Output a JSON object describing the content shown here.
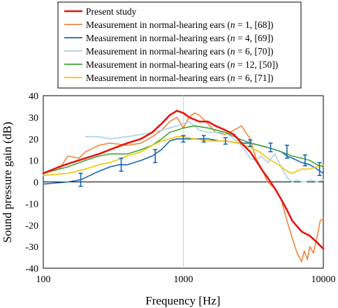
{
  "chart_data": {
    "type": "line",
    "xscale": "log",
    "xlim": [
      100,
      10000
    ],
    "ylim": [
      -40,
      40
    ],
    "xlabel": "Frequency [Hz]",
    "ylabel": "Sound pressure gain (dB)",
    "xticks": [
      "100",
      "1000",
      "10000"
    ],
    "yticks": [
      "40",
      "30",
      "20",
      "10",
      "0",
      "-10",
      "-20",
      "-30",
      "-40"
    ],
    "grid": "vertical at decades",
    "legend_position": "top",
    "series": [
      {
        "name": "Present study",
        "color": "#e8140f",
        "x": [
          100,
          130,
          160,
          200,
          250,
          300,
          400,
          500,
          600,
          700,
          800,
          900,
          1000,
          1100,
          1300,
          1500,
          1700,
          2000,
          2300,
          2600,
          3000,
          3300,
          3700,
          4000,
          4500,
          5000,
          5500,
          6000,
          7000,
          8000,
          9000,
          10000
        ],
        "y": [
          4,
          7,
          9,
          11,
          13,
          15,
          18,
          20,
          23,
          27,
          31,
          33,
          32,
          30,
          28,
          28,
          26,
          24,
          22,
          18,
          14,
          10,
          5,
          2,
          -3,
          -8,
          -13,
          -18,
          -23,
          -25,
          -28,
          -31
        ]
      },
      {
        "name": "Measurement in normal-hearing ears (n = 1, [68])",
        "color": "#f0863c",
        "x": [
          100,
          130,
          150,
          180,
          200,
          250,
          300,
          400,
          500,
          600,
          700,
          800,
          900,
          1000,
          1100,
          1200,
          1300,
          1500,
          1700,
          2000,
          2300,
          2600,
          3000,
          3300,
          3700,
          4000,
          4500,
          5000,
          5500,
          6000,
          6500,
          7000,
          7300,
          7700,
          8000,
          8500,
          9000,
          9500,
          10000
        ],
        "y": [
          4,
          6,
          12,
          11,
          14,
          17,
          18,
          17,
          18,
          21,
          24,
          28,
          30,
          25,
          30,
          32,
          31,
          27,
          23,
          22,
          24,
          26,
          20,
          11,
          5,
          0,
          -3,
          -8,
          -18,
          -26,
          -33,
          -37,
          -32,
          -36,
          -30,
          -33,
          -26,
          -18,
          -17
        ]
      },
      {
        "name": "Measurement in normal-hearing ears (n = 4, [69])",
        "color": "#1a66b3",
        "x": [
          100,
          150,
          185,
          250,
          300,
          350,
          400,
          500,
          600,
          700,
          800,
          900,
          1000,
          1200,
          1500,
          1800,
          2000,
          2500,
          3000,
          3500,
          4000,
          4500,
          5000,
          5500,
          6000,
          7000,
          8000,
          9000,
          10000
        ],
        "y": [
          -1,
          0,
          1,
          5,
          7,
          8,
          8,
          10,
          12,
          15,
          19,
          20,
          20,
          20,
          20,
          19,
          19,
          18,
          18,
          17,
          16,
          15,
          14,
          12,
          11,
          9,
          8,
          6,
          4
        ],
        "error_x": [
          185,
          360,
          630,
          1000,
          1400,
          2000,
          3000,
          4200,
          5500,
          7400,
          9400
        ],
        "error_y": [
          1,
          8,
          12,
          20,
          20,
          19,
          18,
          16,
          14,
          10,
          6
        ],
        "error_half": [
          3,
          3,
          3,
          1.5,
          1.5,
          1.5,
          1.5,
          2,
          3,
          2.5,
          3
        ]
      },
      {
        "name": "Measurement in normal-hearing ears (n = 6, [70])",
        "color": "#a9d3e6",
        "x": [
          200,
          250,
          300,
          400,
          500,
          600,
          700,
          800,
          900,
          1000,
          1100,
          1200,
          1300,
          1500,
          2000,
          2500,
          2800,
          3000,
          3300,
          3600,
          4000,
          4500,
          5000,
          5500,
          6000,
          6500,
          7000,
          7500,
          8000,
          9000,
          10000
        ],
        "y": [
          21,
          21,
          20,
          21,
          22,
          23,
          24,
          25,
          26,
          27,
          28,
          26,
          24,
          23,
          23,
          18,
          14,
          11,
          10,
          12,
          9,
          13,
          7,
          2,
          0,
          1,
          0,
          0,
          1,
          0,
          1
        ]
      },
      {
        "name": "Measurement in normal-hearing ears (n = 12, [50])",
        "color": "#3fa535",
        "x": [
          100,
          150,
          200,
          250,
          300,
          400,
          500,
          600,
          700,
          800,
          900,
          1000,
          1200,
          1500,
          2000,
          2500,
          3000,
          3500,
          4000,
          5000,
          6000,
          7000,
          8000,
          9000,
          10000
        ],
        "y": [
          4,
          7,
          10,
          12,
          13,
          13,
          15,
          17,
          20,
          23,
          24,
          25,
          26,
          25,
          23,
          20,
          18,
          17,
          16,
          14,
          12,
          11,
          10,
          8,
          7
        ]
      },
      {
        "name": "Measurement in normal-hearing ears (n = 6, [71])",
        "color": "#f5c400",
        "x": [
          100,
          150,
          200,
          250,
          300,
          400,
          500,
          600,
          700,
          800,
          900,
          1000,
          1200,
          1500,
          2000,
          2500,
          3000,
          3500,
          4000,
          4500,
          5000,
          5500,
          6000,
          7000,
          8000,
          9000,
          10000
        ],
        "y": [
          3,
          4,
          6,
          8,
          9,
          12,
          14,
          17,
          19,
          20,
          21,
          21,
          20,
          19,
          19,
          18,
          16,
          14,
          11,
          9,
          7,
          5,
          4,
          6,
          6,
          7,
          8
        ]
      }
    ]
  }
}
